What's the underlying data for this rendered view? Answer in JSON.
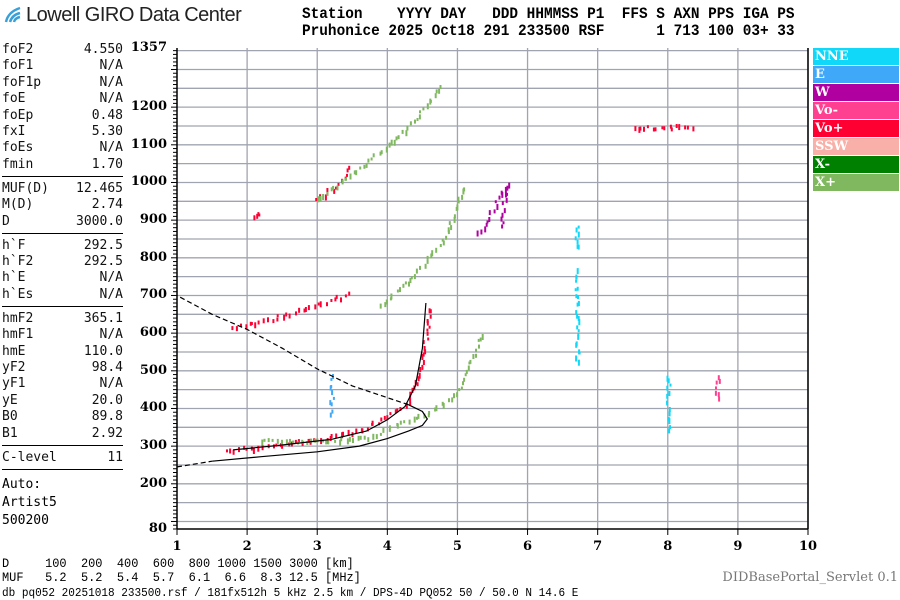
{
  "header": {
    "logo_text": "Lowell GIRO Data Center",
    "line1": "Station    YYYY DAY   DDD HHMMSS P1  FFS S AXN PPS IGA PS",
    "line2": "Pruhonice 2025 Oct18 291 233500 RSF      1 713 100 03+ 33"
  },
  "params": [
    {
      "name": "foF2",
      "value": "4.550"
    },
    {
      "name": "foF1",
      "value": "N/A"
    },
    {
      "name": "foF1p",
      "value": "N/A"
    },
    {
      "name": "foE",
      "value": "N/A"
    },
    {
      "name": "foEp",
      "value": "0.48"
    },
    {
      "name": "fxI",
      "value": "5.30"
    },
    {
      "name": "foEs",
      "value": "N/A"
    },
    {
      "name": "fmin",
      "value": "1.70"
    },
    {
      "name": "MUF(D)",
      "value": "12.465"
    },
    {
      "name": "M(D)",
      "value": "2.74"
    },
    {
      "name": "D",
      "value": "3000.0"
    },
    {
      "name": "h`F",
      "value": "292.5"
    },
    {
      "name": "h`F2",
      "value": "292.5"
    },
    {
      "name": "h`E",
      "value": "N/A"
    },
    {
      "name": "h`Es",
      "value": "N/A"
    },
    {
      "name": "hmF2",
      "value": "365.1"
    },
    {
      "name": "hmF1",
      "value": "N/A"
    },
    {
      "name": "hmE",
      "value": "110.0"
    },
    {
      "name": "yF2",
      "value": "98.4"
    },
    {
      "name": "yF1",
      "value": "N/A"
    },
    {
      "name": "yE",
      "value": "20.0"
    },
    {
      "name": "B0",
      "value": "89.8"
    },
    {
      "name": "B1",
      "value": "2.92"
    },
    {
      "name": "C-level",
      "value": "11"
    }
  ],
  "auto": {
    "l1": "Auto:",
    "l2": "Artist5",
    "l3": "500200"
  },
  "chart_data": {
    "type": "scatter",
    "xlim": [
      1,
      10
    ],
    "ylim": [
      80,
      1357
    ],
    "x_ticks": [
      "1",
      "2",
      "3",
      "4",
      "5",
      "6",
      "7",
      "8",
      "9",
      "10"
    ],
    "y_ticks": [
      "1357",
      "1200",
      "1100",
      "1000",
      "900",
      "800",
      "700",
      "600",
      "500",
      "400",
      "300",
      "200",
      "80"
    ],
    "grid": true,
    "legend_position": "right",
    "legend": [
      {
        "name": "NNE",
        "color": "#10d8f8"
      },
      {
        "name": "E",
        "color": "#40a8f8"
      },
      {
        "name": "W",
        "color": "#b000a0"
      },
      {
        "name": "Vo-",
        "color": "#ff4090"
      },
      {
        "name": "Vo+",
        "color": "#ff0033"
      },
      {
        "name": "SSW",
        "color": "#f8b0a8"
      },
      {
        "name": "X-",
        "color": "#008000"
      },
      {
        "name": "X+",
        "color": "#80b860"
      }
    ],
    "echo_traces": [
      {
        "series": "Vo+",
        "points": [
          [
            1.7,
            292
          ],
          [
            2.4,
            305
          ],
          [
            3.0,
            322
          ],
          [
            3.6,
            345
          ],
          [
            4.0,
            380
          ],
          [
            4.3,
            420
          ],
          [
            4.45,
            500
          ],
          [
            4.55,
            600
          ],
          [
            4.6,
            680
          ]
        ]
      },
      {
        "series": "Vo+",
        "points": [
          [
            1.8,
            615
          ],
          [
            2.5,
            650
          ],
          [
            3.0,
            680
          ],
          [
            3.5,
            710
          ]
        ]
      },
      {
        "series": "Vo+",
        "points": [
          [
            2.1,
            910
          ],
          [
            2.2,
            925
          ]
        ]
      },
      {
        "series": "Vo+",
        "points": [
          [
            3.0,
            960
          ],
          [
            3.3,
            1000
          ],
          [
            3.5,
            1050
          ]
        ]
      },
      {
        "series": "X+",
        "points": [
          [
            2.2,
            318
          ],
          [
            3.0,
            315
          ],
          [
            3.8,
            330
          ],
          [
            4.2,
            365
          ],
          [
            4.6,
            395
          ],
          [
            4.9,
            430
          ],
          [
            5.1,
            480
          ],
          [
            5.25,
            560
          ],
          [
            5.35,
            610
          ]
        ]
      },
      {
        "series": "X+",
        "points": [
          [
            3.9,
            680
          ],
          [
            4.4,
            760
          ],
          [
            4.8,
            850
          ],
          [
            5.1,
            1000
          ]
        ]
      },
      {
        "series": "X+",
        "points": [
          [
            3.0,
            960
          ],
          [
            3.6,
            1040
          ],
          [
            4.3,
            1150
          ],
          [
            4.8,
            1270
          ]
        ]
      },
      {
        "series": "W",
        "points": [
          [
            5.3,
            870
          ],
          [
            5.5,
            930
          ],
          [
            5.7,
            1000
          ],
          [
            5.6,
            880
          ]
        ]
      },
      {
        "series": "E",
        "points": [
          [
            3.2,
            390
          ],
          [
            3.2,
            500
          ]
        ]
      },
      {
        "series": "NNE",
        "points": [
          [
            6.7,
            530
          ],
          [
            6.7,
            780
          ]
        ]
      },
      {
        "series": "NNE",
        "points": [
          [
            8.0,
            350
          ],
          [
            8.0,
            500
          ]
        ]
      },
      {
        "series": "NNE",
        "points": [
          [
            6.7,
            830
          ],
          [
            6.7,
            900
          ]
        ]
      },
      {
        "series": "Vo-",
        "points": [
          [
            8.7,
            430
          ],
          [
            8.7,
            500
          ]
        ]
      },
      {
        "series": "Vo+",
        "points": [
          [
            7.5,
            1150
          ],
          [
            8.4,
            1150
          ]
        ]
      }
    ],
    "profile": {
      "solid": [
        [
          1.5,
          260
        ],
        [
          2.2,
          272
        ],
        [
          3.0,
          285
        ],
        [
          3.6,
          300
        ],
        [
          4.0,
          320
        ],
        [
          4.3,
          340
        ],
        [
          4.5,
          355
        ],
        [
          4.57,
          372
        ],
        [
          4.5,
          392
        ],
        [
          4.3,
          410
        ]
      ],
      "dashed_low": [
        [
          1.0,
          245
        ],
        [
          1.5,
          260
        ]
      ],
      "dashed_high": [
        [
          4.3,
          410
        ],
        [
          3.9,
          435
        ],
        [
          3.5,
          460
        ],
        [
          3.0,
          505
        ],
        [
          2.5,
          560
        ],
        [
          2.0,
          610
        ],
        [
          1.5,
          650
        ],
        [
          1.0,
          700
        ]
      ]
    },
    "trace_fit": [
      [
        1.8,
        290
      ],
      [
        2.5,
        303
      ],
      [
        3.2,
        318
      ],
      [
        3.7,
        340
      ],
      [
        4.0,
        370
      ],
      [
        4.25,
        405
      ],
      [
        4.4,
        460
      ],
      [
        4.5,
        560
      ],
      [
        4.55,
        680
      ]
    ]
  },
  "bottom": {
    "d_row": "D     100  200  400  600  800 1000 1500 3000 [km]",
    "muf_row": "MUF   5.2  5.2  5.4  5.7  6.1  6.6  8.3 12.5 [MHz]",
    "file_row": "db pq052 20251018 233500.rsf / 181fx512h 5 kHz 2.5 km / DPS-4D PQ052 50 / 50.0 N 14.6 E",
    "servlet": "DIDBasePortal_Servlet 0.1"
  }
}
